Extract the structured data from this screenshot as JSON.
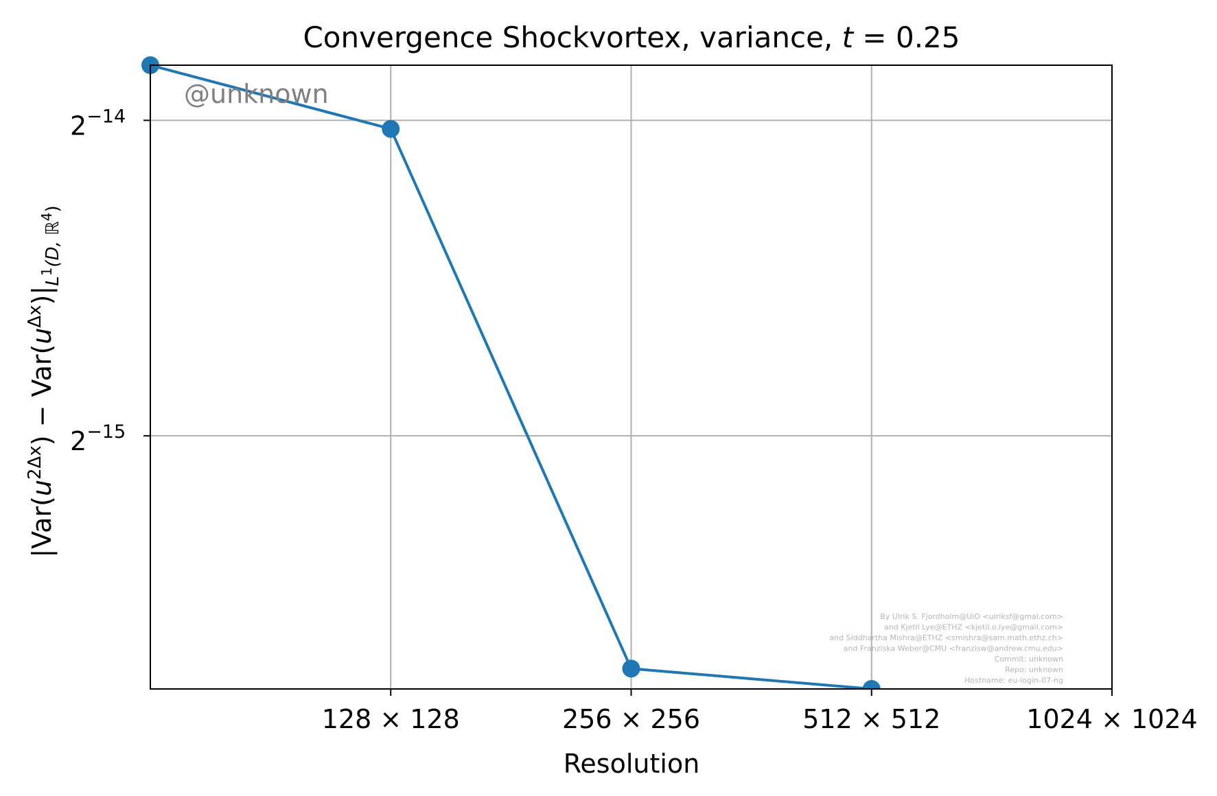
{
  "chart_data": {
    "type": "line",
    "title_prefix": "Convergence Shockvortex, variance, ",
    "title_t": "t",
    "title_suffix": " = 0.25",
    "xlabel": "Resolution",
    "ylabel_parts": [
      "|Var(",
      "u",
      "2Δx",
      ") − Var(",
      "u",
      "Δx",
      ")|",
      "L",
      "1",
      "(D, ℝ",
      "4",
      ")"
    ],
    "x_scale": "log2",
    "y_scale": "log2",
    "xlim": [
      64,
      1024
    ],
    "ylim": [
      1.75e-05,
      6.89e-05
    ],
    "x_ticks": [
      {
        "value": 128,
        "label": "128 × 128"
      },
      {
        "value": 256,
        "label": "256 × 256"
      },
      {
        "value": 512,
        "label": "512 × 512"
      },
      {
        "value": 1024,
        "label": "1024 × 1024"
      }
    ],
    "y_ticks": [
      {
        "value": 6.103515625e-05,
        "base": "2",
        "exponent": "−14"
      },
      {
        "value": 3.0517578125e-05,
        "base": "2",
        "exponent": "−15"
      }
    ],
    "grid": true,
    "series": [
      {
        "x": [
          64,
          128,
          256,
          512
        ],
        "y": [
          6.89e-05,
          5.99e-05,
          1.83e-05,
          1.75e-05
        ],
        "color": "#1f77b4",
        "marker": "circle"
      }
    ]
  },
  "watermark": "@unknown",
  "credits": [
    "By Ulrik S. Fjordholm@UiO <ulriksf@gmal.com>",
    "and Kjetil Lye@ETHZ <kjetil.o.lye@gmail.com>",
    "and Siddhartha Mishra@ETHZ <smishra@sam.math.ethz.ch>",
    "and Franziska Weber@CMU <franzisw@andrew.cmu.edu>",
    "Commit: unknown",
    "Repo: unknown",
    "Hostname: eu-login-07-ng"
  ]
}
